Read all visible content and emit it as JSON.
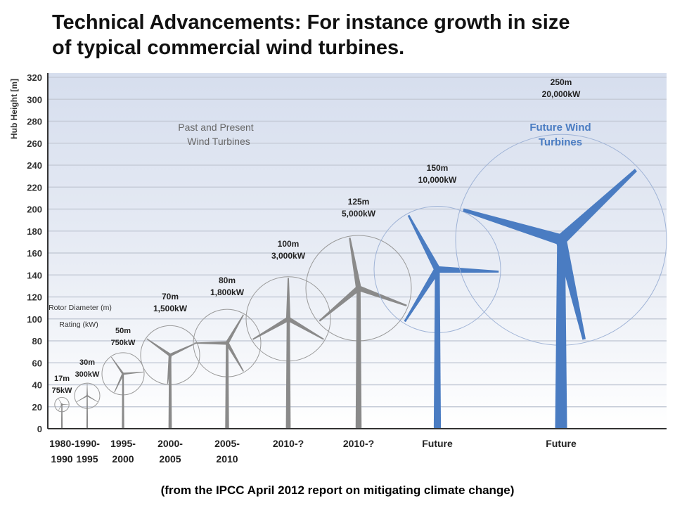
{
  "title_line1": "Technical Advancements: For instance growth in size",
  "title_line2": "of typical commercial wind turbines.",
  "footer": "(from the IPCC April 2012 report on mitigating climate change)",
  "chart_data": {
    "type": "scatter",
    "title": "",
    "ylabel": "Hub Height [m]",
    "xlabel": "",
    "ylim": [
      0,
      320
    ],
    "yticks": [
      0,
      20,
      40,
      60,
      80,
      100,
      120,
      140,
      160,
      180,
      200,
      220,
      240,
      260,
      280,
      300,
      320
    ],
    "grid": true,
    "legend_label_line1": "Rotor Diameter (m)",
    "legend_label_line2": "Rating (kW)",
    "group_past_line1": "Past and Present",
    "group_past_line2": "Wind Turbines",
    "group_future_line1": "Future Wind",
    "group_future_line2": "Turbines",
    "colors": {
      "past": "#8a8a8a",
      "future": "#4a7cc2",
      "circle_past": "#9a9a9a",
      "circle_future": "#9fb3d6"
    },
    "turbines": [
      {
        "period_line1": "1980-",
        "period_line2": "1990",
        "hub_height": 22,
        "rotor_diameter": 17,
        "diameter_label": "17m",
        "rating_label": "75kW",
        "group": "past"
      },
      {
        "period_line1": "1990-",
        "period_line2": "1995",
        "hub_height": 30,
        "rotor_diameter": 30,
        "diameter_label": "30m",
        "rating_label": "300kW",
        "group": "past"
      },
      {
        "period_line1": "1995-",
        "period_line2": "2000",
        "hub_height": 50,
        "rotor_diameter": 50,
        "diameter_label": "50m",
        "rating_label": "750kW",
        "group": "past"
      },
      {
        "period_line1": "2000-",
        "period_line2": "2005",
        "hub_height": 67,
        "rotor_diameter": 70,
        "diameter_label": "70m",
        "rating_label": "1,500kW",
        "group": "past"
      },
      {
        "period_line1": "2005-",
        "period_line2": "2010",
        "hub_height": 78,
        "rotor_diameter": 80,
        "diameter_label": "80m",
        "rating_label": "1,800kW",
        "group": "past"
      },
      {
        "period_line1": "2010-?",
        "period_line2": "",
        "hub_height": 100,
        "rotor_diameter": 100,
        "diameter_label": "100m",
        "rating_label": "3,000kW",
        "group": "past"
      },
      {
        "period_line1": "2010-?",
        "period_line2": "",
        "hub_height": 128,
        "rotor_diameter": 125,
        "diameter_label": "125m",
        "rating_label": "5,000kW",
        "group": "past"
      },
      {
        "period_line1": "Future",
        "period_line2": "",
        "hub_height": 145,
        "rotor_diameter": 150,
        "diameter_label": "150m",
        "rating_label": "10,000kW",
        "group": "future"
      },
      {
        "period_line1": "Future",
        "period_line2": "",
        "hub_height": 172,
        "rotor_diameter": 250,
        "diameter_label": "250m",
        "rating_label": "20,000kW",
        "group": "future"
      }
    ]
  }
}
